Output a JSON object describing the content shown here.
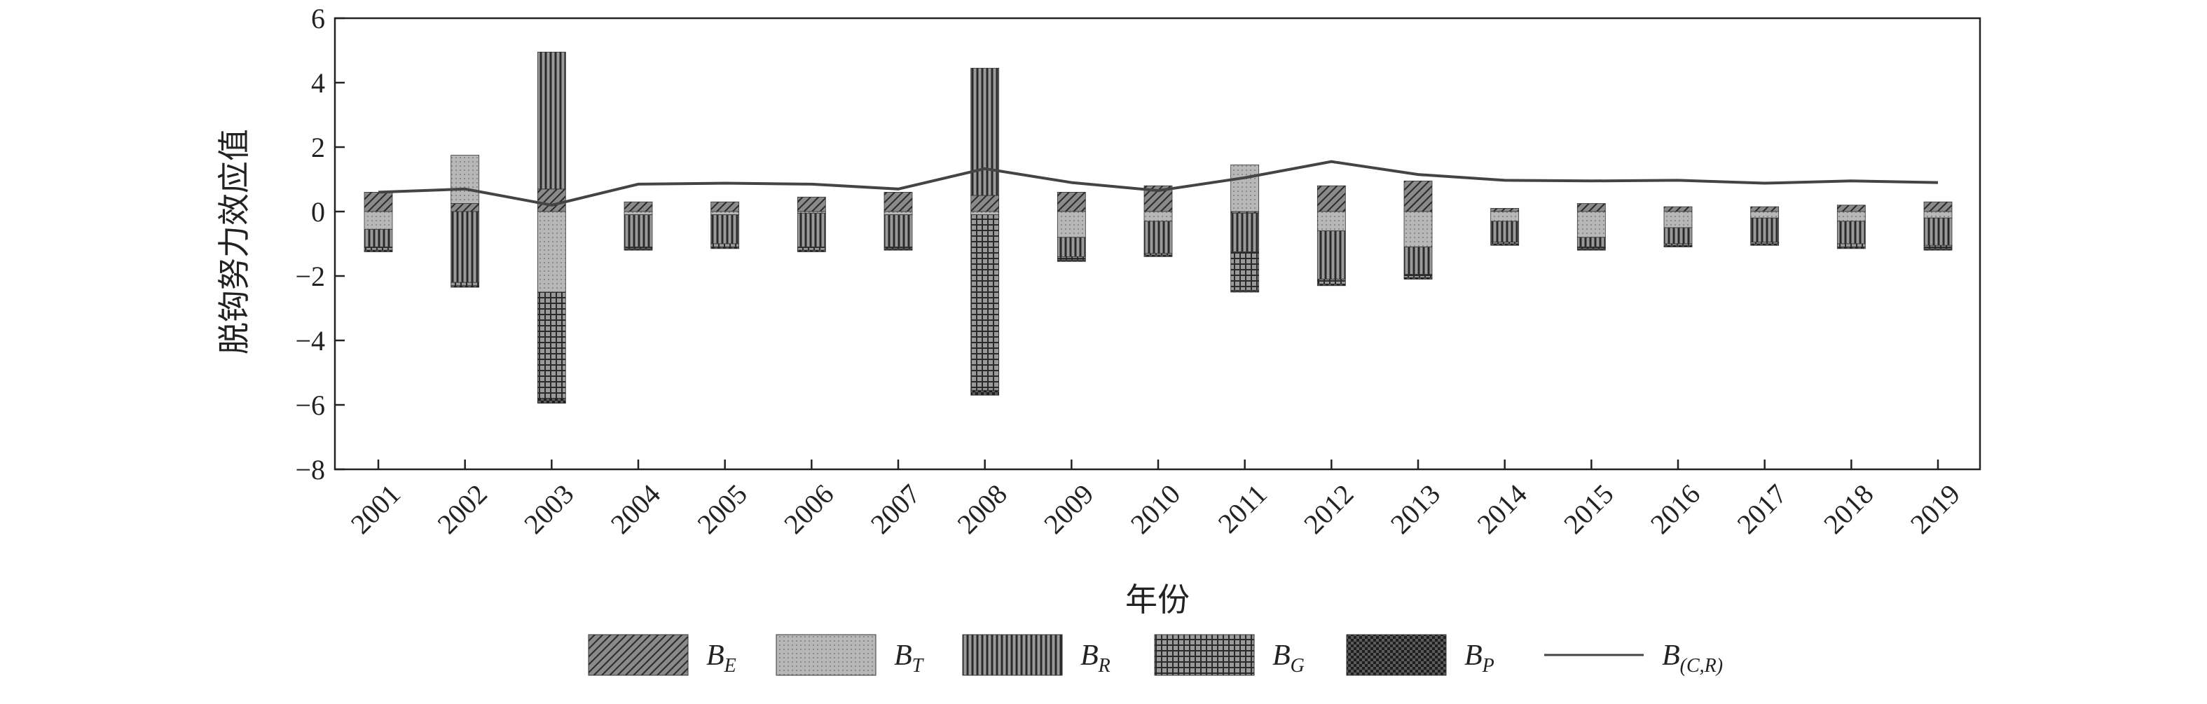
{
  "chart_data": {
    "type": "bar",
    "subtype": "stacked-bar-with-line",
    "title": "",
    "xlabel": "年份",
    "ylabel": "脱钩努力效应值",
    "ylim": [
      -8,
      6
    ],
    "yticks": [
      6,
      4,
      2,
      0,
      -2,
      -4,
      -6,
      -8
    ],
    "ytick_labels": [
      "6",
      "4",
      "2",
      "0",
      "−2",
      "−4",
      "−6",
      "−8"
    ],
    "categories": [
      "2001",
      "2002",
      "2003",
      "2004",
      "2005",
      "2006",
      "2007",
      "2008",
      "2009",
      "2010",
      "2011",
      "2012",
      "2013",
      "2014",
      "2015",
      "2016",
      "2017",
      "2018",
      "2019"
    ],
    "grid": false,
    "legend_position": "bottom",
    "series": [
      {
        "name": "B_E",
        "label_main": "B",
        "label_sub": "E",
        "kind": "bar",
        "pattern": "diag",
        "values": [
          0.6,
          0.25,
          0.7,
          0.3,
          0.3,
          0.45,
          0.6,
          0.5,
          0.6,
          0.8,
          -0.05,
          0.8,
          0.95,
          0.1,
          0.25,
          0.15,
          0.15,
          0.2,
          0.3
        ]
      },
      {
        "name": "B_T",
        "label_main": "B",
        "label_sub": "T",
        "kind": "bar",
        "pattern": "dots",
        "values": [
          -0.55,
          1.5,
          -2.5,
          -0.1,
          -0.1,
          -0.05,
          -0.1,
          -0.1,
          -0.8,
          -0.3,
          1.45,
          -0.6,
          -1.1,
          -0.3,
          -0.8,
          -0.5,
          -0.2,
          -0.3,
          -0.2
        ]
      },
      {
        "name": "B_R",
        "label_main": "B",
        "label_sub": "R",
        "kind": "bar",
        "pattern": "vert",
        "values": [
          -0.55,
          -2.2,
          4.25,
          -1.0,
          -0.9,
          -1.05,
          -1.0,
          3.95,
          -0.6,
          -1.0,
          -1.2,
          -1.5,
          -0.85,
          -0.65,
          -0.3,
          -0.5,
          -0.75,
          -0.7,
          -0.85
        ]
      },
      {
        "name": "B_G",
        "label_main": "B",
        "label_sub": "G",
        "kind": "bar",
        "pattern": "grid",
        "values": [
          -0.1,
          -0.1,
          -3.3,
          -0.05,
          -0.1,
          -0.1,
          -0.05,
          -5.45,
          -0.1,
          -0.05,
          -1.2,
          -0.15,
          -0.1,
          -0.05,
          -0.05,
          -0.05,
          -0.05,
          -0.1,
          -0.1
        ]
      },
      {
        "name": "B_P",
        "label_main": "B",
        "label_sub": "P",
        "kind": "bar",
        "pattern": "check",
        "values": [
          -0.05,
          -0.05,
          -0.15,
          -0.05,
          -0.05,
          -0.05,
          -0.05,
          -0.15,
          -0.05,
          -0.05,
          -0.05,
          -0.05,
          -0.05,
          -0.05,
          -0.05,
          -0.05,
          -0.05,
          -0.05,
          -0.05
        ]
      },
      {
        "name": "B_(C,R)",
        "label_main": "B",
        "label_sub": "(C,R)",
        "kind": "line",
        "values": [
          0.6,
          0.7,
          0.2,
          0.85,
          0.88,
          0.85,
          0.7,
          1.33,
          0.9,
          0.65,
          1.05,
          1.55,
          1.15,
          0.97,
          0.95,
          0.97,
          0.88,
          0.95,
          0.9
        ]
      }
    ]
  },
  "colors": {
    "axis": "#222222",
    "bar_dark": "#333333",
    "bar_mid": "#777777",
    "bar_fill_light": "#bdbdbd",
    "line": "#444444",
    "background": "#ffffff"
  }
}
